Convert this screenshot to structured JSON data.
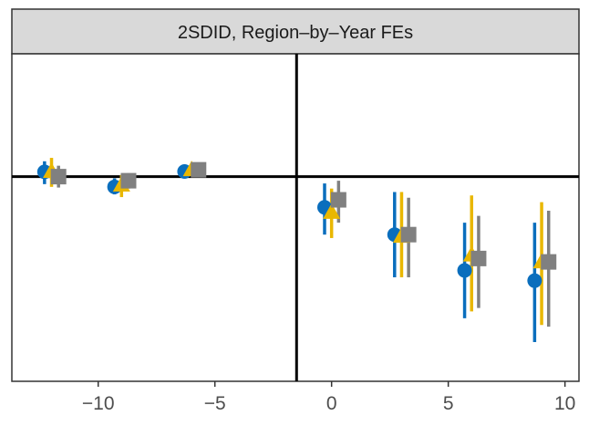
{
  "chart_data": {
    "type": "scatter",
    "subtype": "event-study coefficient plot with confidence intervals",
    "title": "2SDID, Region–by–Year FEs",
    "xlabel": "",
    "ylabel": "",
    "xlim": [
      -13.7,
      10.6
    ],
    "ylim": [
      -6.0,
      3.6
    ],
    "x_ticks": [
      -10,
      -5,
      0,
      5,
      10
    ],
    "x_tick_labels": [
      "−10",
      "−5",
      "0",
      "5",
      "10"
    ],
    "hline_y": 0,
    "vline_x": -1.5,
    "grid": false,
    "legend": "none",
    "series": [
      {
        "marker": "circle",
        "color": "#0A6EBD",
        "points": [
          {
            "x": -12.3,
            "y": 0.14,
            "lo": -0.22,
            "hi": 0.45
          },
          {
            "x": -9.3,
            "y": -0.3,
            "lo": -0.52,
            "hi": -0.05
          },
          {
            "x": -6.3,
            "y": 0.15,
            "lo": 0.0,
            "hi": 0.3
          },
          {
            "x": -0.3,
            "y": -0.9,
            "lo": -1.7,
            "hi": -0.2
          },
          {
            "x": 2.7,
            "y": -1.7,
            "lo": -2.95,
            "hi": -0.45
          },
          {
            "x": 5.7,
            "y": -2.75,
            "lo": -4.15,
            "hi": -1.35
          },
          {
            "x": 8.7,
            "y": -3.05,
            "lo": -4.85,
            "hi": -1.35
          }
        ]
      },
      {
        "marker": "triangle",
        "color": "#E9B700",
        "points": [
          {
            "x": -12.0,
            "y": 0.15,
            "lo": -0.3,
            "hi": 0.55
          },
          {
            "x": -9.0,
            "y": -0.25,
            "lo": -0.6,
            "hi": 0.05
          },
          {
            "x": -6.0,
            "y": 0.2,
            "lo": 0.1,
            "hi": 0.35
          },
          {
            "x": 0.0,
            "y": -1.05,
            "lo": -1.8,
            "hi": -0.35
          },
          {
            "x": 3.0,
            "y": -1.75,
            "lo": -2.95,
            "hi": -0.45
          },
          {
            "x": 6.0,
            "y": -2.3,
            "lo": -3.95,
            "hi": -0.55
          },
          {
            "x": 9.0,
            "y": -2.5,
            "lo": -4.35,
            "hi": -0.75
          }
        ]
      },
      {
        "marker": "square",
        "color": "#808080",
        "points": [
          {
            "x": -11.7,
            "y": 0.0,
            "lo": -0.32,
            "hi": 0.32
          },
          {
            "x": -8.7,
            "y": -0.12,
            "lo": -0.35,
            "hi": 0.1
          },
          {
            "x": -5.7,
            "y": 0.2,
            "lo": 0.12,
            "hi": 0.3
          },
          {
            "x": 0.3,
            "y": -0.68,
            "lo": -1.35,
            "hi": -0.12
          },
          {
            "x": 3.3,
            "y": -1.7,
            "lo": -2.95,
            "hi": -0.62
          },
          {
            "x": 6.3,
            "y": -2.4,
            "lo": -3.85,
            "hi": -1.15
          },
          {
            "x": 9.3,
            "y": -2.5,
            "lo": -4.4,
            "hi": -1.0
          }
        ]
      }
    ]
  }
}
